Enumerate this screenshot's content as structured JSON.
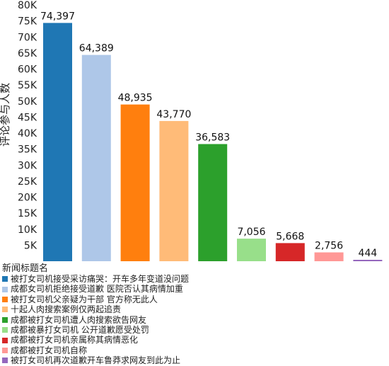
{
  "chart_data": {
    "type": "bar",
    "ylabel": "评论参与人数",
    "ylim": [
      0,
      80000
    ],
    "yticks": [
      5000,
      10000,
      15000,
      20000,
      25000,
      30000,
      35000,
      40000,
      45000,
      50000,
      55000,
      60000,
      65000,
      70000,
      75000,
      80000
    ],
    "ytick_labels": [
      "5K",
      "10K",
      "15K",
      "20K",
      "25K",
      "30K",
      "35K",
      "40K",
      "45K",
      "50K",
      "55K",
      "60K",
      "65K",
      "70K",
      "75K",
      "80K"
    ],
    "legend_title": "新闻标题名",
    "legend_position": "bottom-left",
    "grid": false,
    "categories": [
      "被打女司机接受采访痛哭：开车多年变道没问题",
      "成都女司机拒绝接受道歉 医院否认其病情加重",
      "被打女司机父亲疑为干部 官方称无此人",
      "十起人肉搜索案例仅两起追责",
      "成都被打女司机遭人肉搜索欲告网友",
      "成都被暴打女司机 公开道歉愿受处罚",
      "成都被打女司机亲属称其病情恶化",
      "成都被打女司机自称",
      "被打女司机再次道歉开车鲁莽求网友到此为止"
    ],
    "values": [
      74397,
      64389,
      48935,
      43770,
      36583,
      7056,
      5668,
      2756,
      444
    ],
    "value_labels": [
      "74,397",
      "64,389",
      "48,935",
      "43,770",
      "36,583",
      "7,056",
      "5,668",
      "2,756",
      "444"
    ],
    "colors": [
      "#1f77b4",
      "#aec7e8",
      "#ff7f0e",
      "#ffbb78",
      "#2ca02c",
      "#98df8a",
      "#d62728",
      "#ff9896",
      "#9467bd"
    ]
  }
}
